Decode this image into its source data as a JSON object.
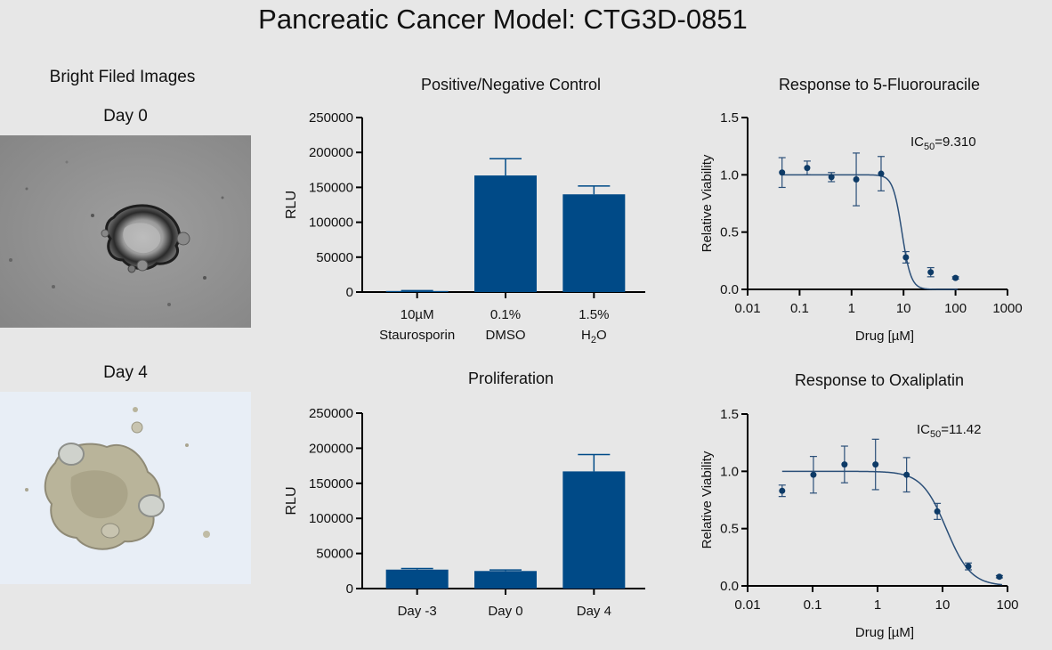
{
  "page": {
    "title": "Pancreatic Cancer Model: CTG3D-0851",
    "images_heading": "Bright Filed Images",
    "day0_label": "Day 0",
    "day4_label": "Day 4"
  },
  "colors": {
    "bar": "#004a87",
    "curve": "#2b4f78",
    "point": "#0d3a66",
    "background": "#e7e7e7"
  },
  "chart_data": [
    {
      "id": "control",
      "type": "bar",
      "title": "Positive/Negative Control",
      "ylabel": "RLU",
      "xlabel": "",
      "ylim": [
        0,
        250000
      ],
      "yticks": [
        "0",
        "50000",
        "100000",
        "150000",
        "200000",
        "250000"
      ],
      "categories": [
        {
          "line1": "10µM",
          "line2": "Staurosporin"
        },
        {
          "line1": "0.1%",
          "line2": "DMSO"
        },
        {
          "line1": "1.5%",
          "line2_main": "H",
          "line2_sub": "2",
          "line2_end": "O"
        }
      ],
      "values": [
        1500,
        167000,
        140000
      ],
      "errors": [
        500,
        24000,
        12000
      ]
    },
    {
      "id": "proliferation",
      "type": "bar",
      "title": "Proliferation",
      "ylabel": "RLU",
      "xlabel": "",
      "ylim": [
        0,
        250000
      ],
      "yticks": [
        "0",
        "50000",
        "100000",
        "150000",
        "200000",
        "250000"
      ],
      "categories": [
        {
          "line1": "Day -3"
        },
        {
          "line1": "Day 0"
        },
        {
          "line1": "Day 4"
        }
      ],
      "values": [
        27000,
        25000,
        167000
      ],
      "errors": [
        1500,
        1500,
        24000
      ]
    },
    {
      "id": "fluorouracile",
      "type": "scatter",
      "title": "Response to 5-Fluorouracile",
      "ylabel": "Relative Viability",
      "xlabel": "Drug [µM]",
      "x_scale": "log",
      "xlim": [
        0.01,
        1000
      ],
      "ylim": [
        0,
        1.5
      ],
      "xticks": [
        "0.01",
        "0.1",
        "1",
        "10",
        "100",
        "1000"
      ],
      "yticks": [
        "0.0",
        "0.5",
        "1.0",
        "1.5"
      ],
      "ic50_prefix": "IC",
      "ic50_sub": "50",
      "ic50_value": "=9.310",
      "ic50": 9.31,
      "hill": 5,
      "top": 1.0,
      "bottom": 0.0,
      "points": [
        {
          "x": 0.046,
          "y": 1.02,
          "err": 0.13
        },
        {
          "x": 0.14,
          "y": 1.06,
          "err": 0.06
        },
        {
          "x": 0.41,
          "y": 0.98,
          "err": 0.04
        },
        {
          "x": 1.23,
          "y": 0.96,
          "err": 0.23
        },
        {
          "x": 3.7,
          "y": 1.01,
          "err": 0.15
        },
        {
          "x": 11.1,
          "y": 0.28,
          "err": 0.05
        },
        {
          "x": 33.3,
          "y": 0.15,
          "err": 0.04
        },
        {
          "x": 100,
          "y": 0.1,
          "err": 0.01
        }
      ]
    },
    {
      "id": "oxaliplatin",
      "type": "scatter",
      "title": "Response to Oxaliplatin",
      "ylabel": "Relative Viability",
      "xlabel": "Drug [µM]",
      "x_scale": "log",
      "xlim": [
        0.01,
        100
      ],
      "ylim": [
        0,
        1.5
      ],
      "xticks": [
        "0.01",
        "0.1",
        "1",
        "10",
        "100"
      ],
      "yticks": [
        "0.0",
        "0.5",
        "1.0",
        "1.5"
      ],
      "ic50_prefix": "IC",
      "ic50_sub": "50",
      "ic50_value": "=11.42",
      "ic50": 11.42,
      "hill": 2.3,
      "top": 1.0,
      "bottom": 0.0,
      "points": [
        {
          "x": 0.034,
          "y": 0.83,
          "err": 0.05
        },
        {
          "x": 0.103,
          "y": 0.97,
          "err": 0.16
        },
        {
          "x": 0.31,
          "y": 1.06,
          "err": 0.16
        },
        {
          "x": 0.93,
          "y": 1.06,
          "err": 0.22
        },
        {
          "x": 2.8,
          "y": 0.97,
          "err": 0.15
        },
        {
          "x": 8.3,
          "y": 0.65,
          "err": 0.07
        },
        {
          "x": 25,
          "y": 0.17,
          "err": 0.03
        },
        {
          "x": 75,
          "y": 0.08,
          "err": 0.01
        }
      ]
    }
  ]
}
